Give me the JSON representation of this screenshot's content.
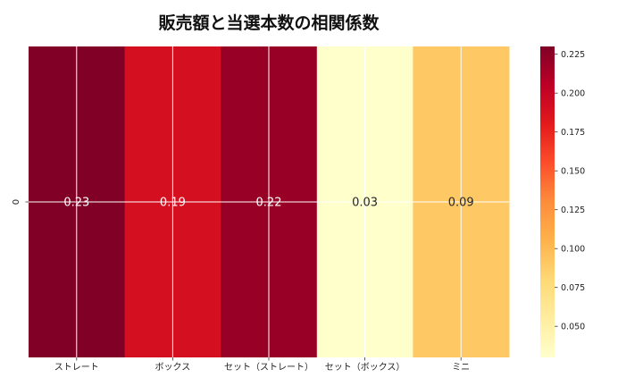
{
  "chart_data": {
    "type": "heatmap",
    "title": "販売額と当選本数の相関係数",
    "x_categories": [
      "ストレート",
      "ボックス",
      "セット（ストレート）",
      "セット（ボックス）",
      "ミニ"
    ],
    "y_categories": [
      "0"
    ],
    "values": [
      [
        0.23,
        0.19,
        0.22,
        0.03,
        0.09
      ]
    ],
    "cell_labels": [
      "0.23",
      "0.19",
      "0.22",
      "0.03",
      "0.09"
    ],
    "colormap": "YlOrRd",
    "colorbar": {
      "min": 0.03,
      "max": 0.23,
      "ticks": [
        "0.050",
        "0.075",
        "0.100",
        "0.125",
        "0.150",
        "0.175",
        "0.200",
        "0.225"
      ]
    },
    "grid": true
  }
}
